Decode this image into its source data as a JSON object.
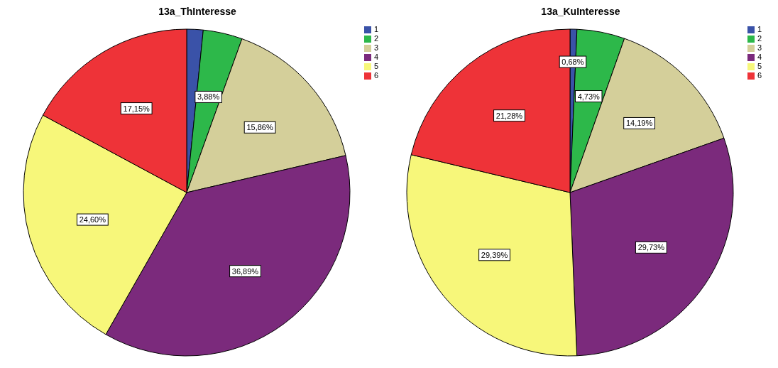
{
  "chart_data": [
    {
      "type": "pie",
      "title": "13a_ThInteresse",
      "categories": [
        "1",
        "2",
        "3",
        "4",
        "5",
        "6"
      ],
      "values": [
        1.62,
        3.88,
        15.86,
        36.89,
        24.6,
        17.15
      ],
      "value_labels": [
        null,
        "3,88%",
        "15,86%",
        "36,89%",
        "24,60%",
        "17,15%"
      ],
      "colors": [
        "#3a52a8",
        "#2db84a",
        "#d4cf9a",
        "#7b2a7c",
        "#f7f77a",
        "#ee3338"
      ],
      "legend": "top right"
    },
    {
      "type": "pie",
      "title": "13a_KuInteresse",
      "categories": [
        "1",
        "2",
        "3",
        "4",
        "5",
        "6"
      ],
      "values": [
        0.68,
        4.73,
        14.19,
        29.73,
        29.39,
        21.28
      ],
      "value_labels": [
        "0,68%",
        "4,73%",
        "14,19%",
        "29,73%",
        "29,39%",
        "21,28%"
      ],
      "colors": [
        "#3a52a8",
        "#2db84a",
        "#d4cf9a",
        "#7b2a7c",
        "#f7f77a",
        "#ee3338"
      ],
      "legend": "top right"
    }
  ]
}
